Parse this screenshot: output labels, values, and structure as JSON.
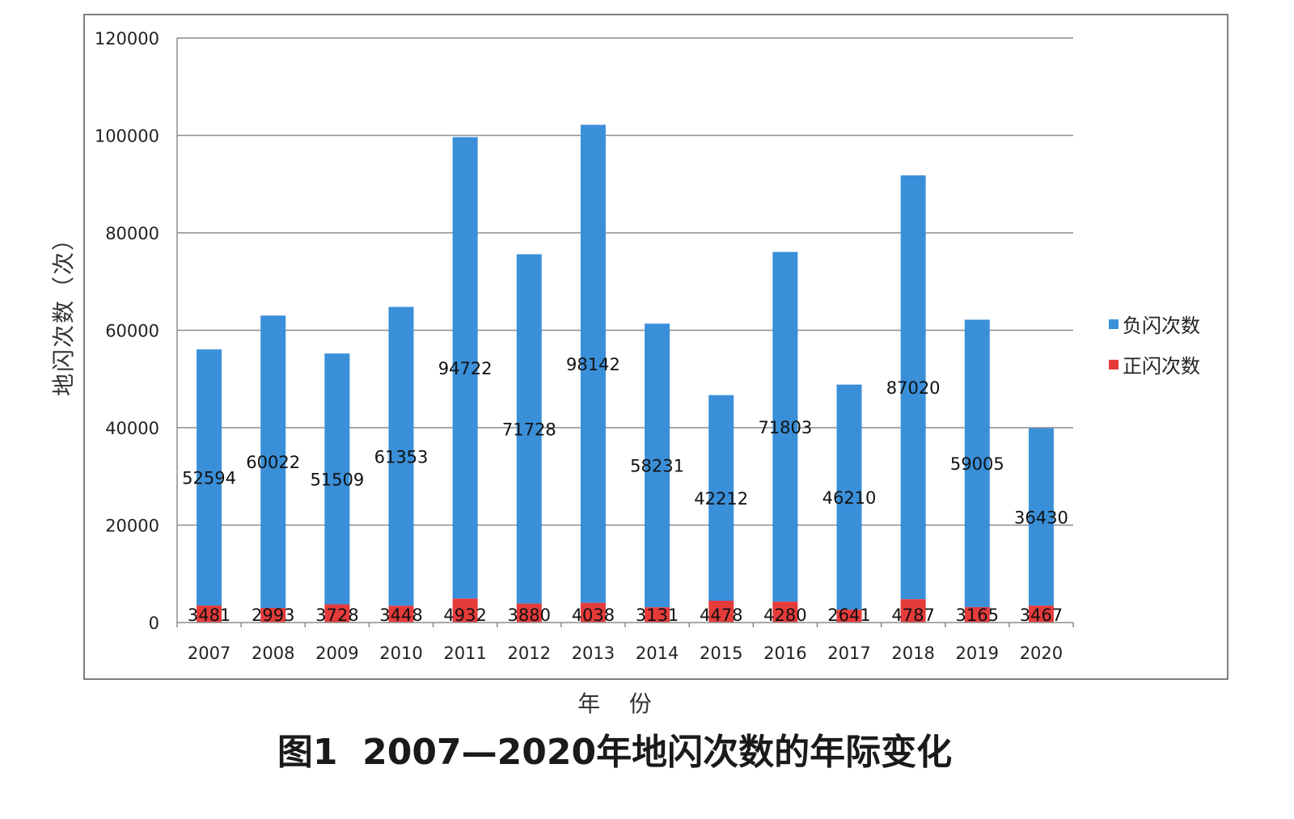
{
  "chart_data": {
    "type": "bar",
    "stacked": true,
    "title": "图1  2007—2020年地闪次数的年际变化",
    "xlabel": "年    份",
    "ylabel": "地闪次数（次）",
    "ylim": [
      0,
      120000
    ],
    "yticks": [
      "0",
      "20000",
      "40000",
      "60000",
      "80000",
      "100000",
      "120000"
    ],
    "categories": [
      "2007",
      "2008",
      "2009",
      "2010",
      "2011",
      "2012",
      "2013",
      "2014",
      "2015",
      "2016",
      "2017",
      "2018",
      "2019",
      "2020"
    ],
    "series": [
      {
        "name": "正闪次数",
        "color": "#e63b3b",
        "values": [
          3481,
          2993,
          3728,
          3448,
          4932,
          3880,
          4038,
          3131,
          4478,
          4280,
          2641,
          4787,
          3165,
          3467
        ]
      },
      {
        "name": "负闪次数",
        "color": "#3a8fd9",
        "values": [
          52594,
          60022,
          51509,
          61353,
          94722,
          71728,
          98142,
          58231,
          42212,
          71803,
          46210,
          87020,
          59005,
          36430
        ]
      }
    ],
    "legend_position": "right",
    "grid": true
  }
}
